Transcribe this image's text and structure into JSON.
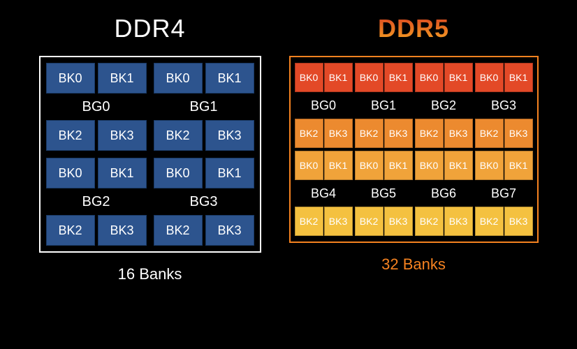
{
  "background_color": "#000000",
  "ddr4": {
    "title": "DDR4",
    "title_color": "#ffffff",
    "footer": "16 Banks",
    "footer_color": "#ffffff",
    "border_color": "#ffffff",
    "bank_fill": "#2d548e",
    "bank_border": "#1a3a66",
    "bank_text_color": "#ffffff",
    "label_text_color": "#ffffff",
    "bank_groups": [
      {
        "label": "BG0",
        "banks_top": [
          "BK0",
          "BK1"
        ],
        "banks_bottom": [
          "BK2",
          "BK3"
        ]
      },
      {
        "label": "BG1",
        "banks_top": [
          "BK0",
          "BK1"
        ],
        "banks_bottom": [
          "BK2",
          "BK3"
        ]
      },
      {
        "label": "BG2",
        "banks_top": [
          "BK0",
          "BK1"
        ],
        "banks_bottom": [
          "BK2",
          "BK3"
        ]
      },
      {
        "label": "BG3",
        "banks_top": [
          "BK0",
          "BK1"
        ],
        "banks_bottom": [
          "BK2",
          "BK3"
        ]
      }
    ]
  },
  "ddr5": {
    "title": "DDR5",
    "title_gradient_top": "#d94020",
    "title_gradient_bottom": "#f5a623",
    "footer": "32 Banks",
    "footer_color": "#f58220",
    "border_color": "#f58220",
    "label_text_color": "#ffffff",
    "bank_text_color": "#ffffff",
    "rows": [
      {
        "type": "banks",
        "color": "#e34927",
        "cells": [
          "BK0",
          "BK1",
          "BK0",
          "BK1",
          "BK0",
          "BK1",
          "BK0",
          "BK1"
        ]
      },
      {
        "type": "labels",
        "labels": [
          "BG0",
          "BG1",
          "BG2",
          "BG3"
        ]
      },
      {
        "type": "banks",
        "color": "#ec8a2f",
        "cells": [
          "BK2",
          "BK3",
          "BK2",
          "BK3",
          "BK2",
          "BK3",
          "BK2",
          "BK3"
        ]
      },
      {
        "type": "banks",
        "color": "#f0a33a",
        "cells": [
          "BK0",
          "BK1",
          "BK0",
          "BK1",
          "BK0",
          "BK1",
          "BK0",
          "BK1"
        ]
      },
      {
        "type": "labels",
        "labels": [
          "BG4",
          "BG5",
          "BG6",
          "BG7"
        ]
      },
      {
        "type": "banks",
        "color": "#f4c140",
        "cells": [
          "BK2",
          "BK3",
          "BK2",
          "BK3",
          "BK2",
          "BK3",
          "BK2",
          "BK3"
        ]
      }
    ]
  }
}
